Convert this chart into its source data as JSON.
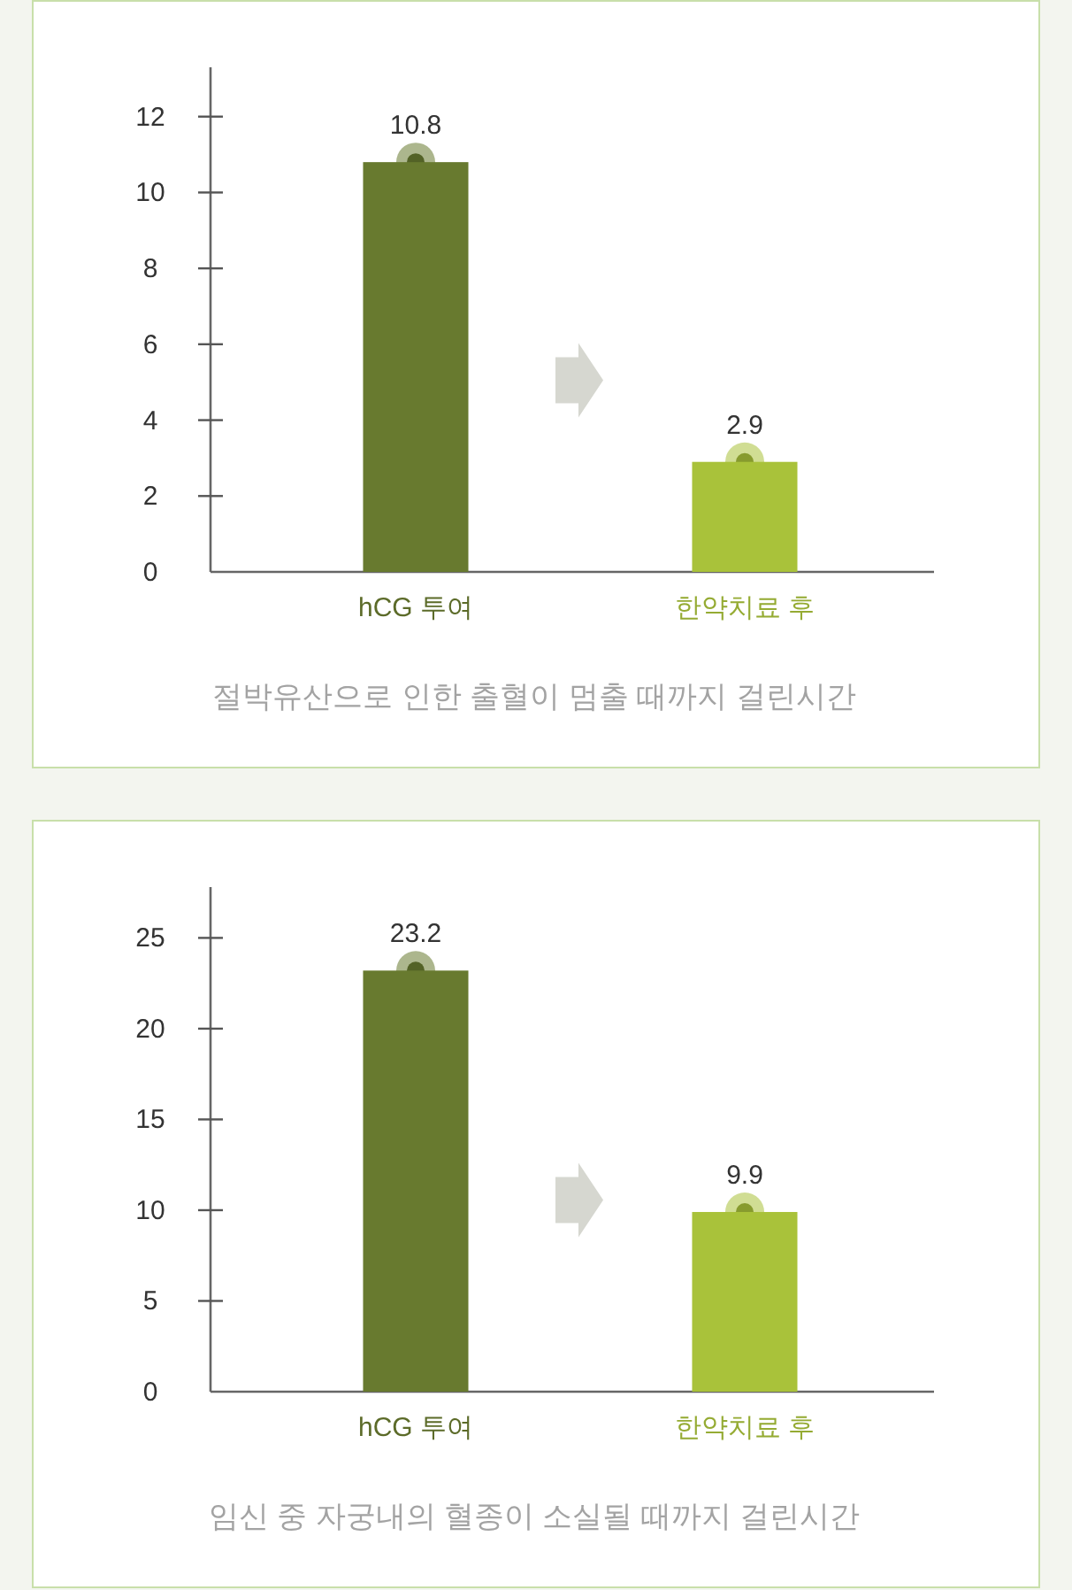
{
  "chart_data": [
    {
      "type": "bar",
      "title": "절박유산으로 인한 출혈이 멈출 때까지 걸린시간",
      "categories": [
        "hCG 투여",
        "한약치료 후"
      ],
      "values": [
        10.8,
        2.9
      ],
      "colors": [
        "#687a2f",
        "#a9c23a"
      ],
      "ylim": [
        0,
        13.3
      ],
      "yticks": [
        0,
        2,
        4,
        6,
        8,
        10,
        12
      ],
      "data_labels": true
    },
    {
      "type": "bar",
      "title": "임신 중 자궁내의 혈종이 소실될 때까지 걸린시간",
      "categories": [
        "hCG 투여",
        "한약치료 후"
      ],
      "values": [
        23.2,
        9.9
      ],
      "colors": [
        "#687a2f",
        "#a9c23a"
      ],
      "ylim": [
        0,
        27.8
      ],
      "yticks": [
        0,
        5,
        10,
        15,
        20,
        25
      ],
      "data_labels": true
    }
  ]
}
